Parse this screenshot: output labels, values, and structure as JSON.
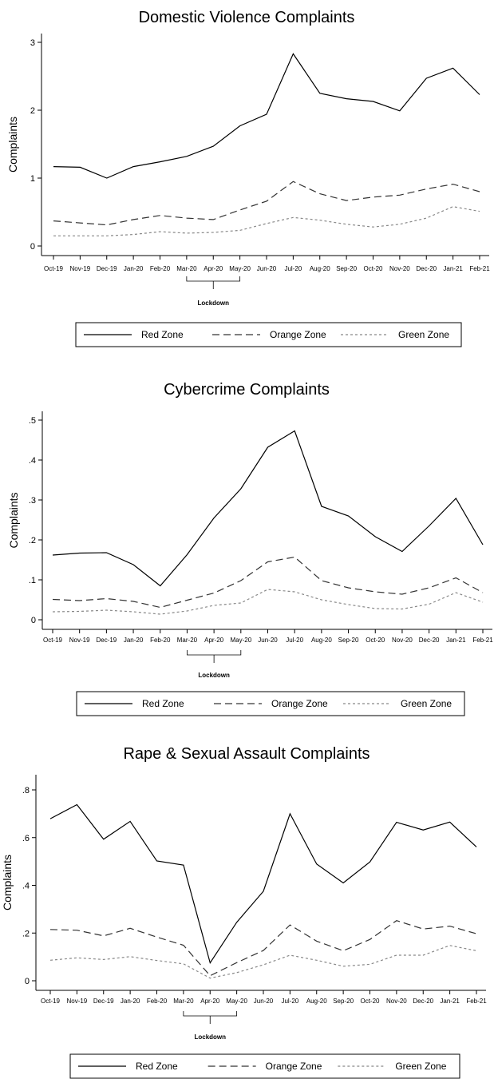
{
  "chart_data": [
    {
      "type": "line",
      "title": "Domestic Violence Complaints",
      "ylabel": "Complaints",
      "xlabel": "",
      "categories": [
        "Oct-19",
        "Nov-19",
        "Dec-19",
        "Jan-20",
        "Feb-20",
        "Mar-20",
        "Apr-20",
        "May-20",
        "Jun-20",
        "Jul-20",
        "Aug-20",
        "Sep-20",
        "Oct-20",
        "Nov-20",
        "Dec-20",
        "Jan-21",
        "Feb-21"
      ],
      "ylim": [
        0,
        3
      ],
      "yticks": [
        "0",
        "1",
        "2",
        "3"
      ],
      "ytick_values": [
        0,
        1,
        2,
        3
      ],
      "annotation": {
        "label": "Lockdown",
        "from": "Mar-20",
        "to": "May-20"
      },
      "legend": "bottom",
      "series": [
        {
          "name": "Red Zone",
          "style": "solid",
          "color": "#000000",
          "values": [
            1.17,
            1.16,
            1.0,
            1.17,
            1.24,
            1.32,
            1.47,
            1.77,
            1.94,
            2.83,
            2.25,
            2.17,
            2.13,
            1.99,
            2.47,
            2.62,
            2.23
          ]
        },
        {
          "name": "Orange Zone",
          "style": "dashed",
          "color": "#333333",
          "values": [
            0.37,
            0.34,
            0.31,
            0.39,
            0.45,
            0.41,
            0.39,
            0.53,
            0.66,
            0.95,
            0.77,
            0.67,
            0.72,
            0.75,
            0.84,
            0.91,
            0.8
          ]
        },
        {
          "name": "Green Zone",
          "style": "dotted",
          "color": "#888888",
          "values": [
            0.15,
            0.15,
            0.15,
            0.17,
            0.21,
            0.19,
            0.2,
            0.23,
            0.33,
            0.42,
            0.38,
            0.32,
            0.28,
            0.32,
            0.41,
            0.58,
            0.51
          ]
        }
      ]
    },
    {
      "type": "line",
      "title": "Cybercrime Complaints",
      "ylabel": "Complaints",
      "xlabel": "",
      "categories": [
        "Oct-19",
        "Nov-19",
        "Dec-19",
        "Jan-20",
        "Feb-20",
        "Mar-20",
        "Apr-20",
        "May-20",
        "Jun-20",
        "Jul-20",
        "Aug-20",
        "Sep-20",
        "Oct-20",
        "Nov-20",
        "Dec-20",
        "Jan-21",
        "Feb-21"
      ],
      "ylim": [
        0,
        0.5
      ],
      "yticks": [
        "0",
        ".1",
        ".2",
        ".3",
        ".4",
        ".5"
      ],
      "ytick_values": [
        0,
        0.1,
        0.2,
        0.3,
        0.4,
        0.5
      ],
      "annotation": {
        "label": "Lockdown",
        "from": "Mar-20",
        "to": "May-20"
      },
      "legend": "bottom",
      "series": [
        {
          "name": "Red Zone",
          "style": "solid",
          "color": "#000000",
          "values": [
            0.162,
            0.167,
            0.168,
            0.138,
            0.085,
            0.163,
            0.255,
            0.328,
            0.432,
            0.473,
            0.284,
            0.26,
            0.208,
            0.171,
            0.235,
            0.304,
            0.188
          ]
        },
        {
          "name": "Orange Zone",
          "style": "dashed",
          "color": "#333333",
          "values": [
            0.051,
            0.048,
            0.053,
            0.046,
            0.031,
            0.049,
            0.067,
            0.098,
            0.145,
            0.157,
            0.098,
            0.08,
            0.07,
            0.064,
            0.08,
            0.105,
            0.068
          ]
        },
        {
          "name": "Green Zone",
          "style": "dotted",
          "color": "#888888",
          "values": [
            0.02,
            0.021,
            0.024,
            0.02,
            0.014,
            0.022,
            0.036,
            0.042,
            0.076,
            0.07,
            0.05,
            0.038,
            0.028,
            0.027,
            0.039,
            0.068,
            0.044
          ]
        }
      ]
    },
    {
      "type": "line",
      "title": "Rape & Sexual Assault Complaints",
      "ylabel": "Complaints",
      "xlabel": "",
      "categories": [
        "Oct-19",
        "Nov-19",
        "Dec-19",
        "Jan-20",
        "Feb-20",
        "Mar-20",
        "Apr-20",
        "May-20",
        "Jun-20",
        "Jul-20",
        "Aug-20",
        "Sep-20",
        "Oct-20",
        "Nov-20",
        "Dec-20",
        "Jan-21",
        "Feb-21"
      ],
      "ylim": [
        0,
        0.8
      ],
      "yticks": [
        "0",
        ".2",
        ".4",
        ".6",
        ".8"
      ],
      "ytick_values": [
        0,
        0.2,
        0.4,
        0.6,
        0.8
      ],
      "annotation": {
        "label": "Lockdown",
        "from": "Mar-20",
        "to": "May-20"
      },
      "legend": "bottom",
      "series": [
        {
          "name": "Red Zone",
          "style": "solid",
          "color": "#000000",
          "values": [
            0.679,
            0.738,
            0.593,
            0.668,
            0.502,
            0.485,
            0.075,
            0.245,
            0.375,
            0.7,
            0.489,
            0.41,
            0.498,
            0.664,
            0.632,
            0.665,
            0.561
          ]
        },
        {
          "name": "Orange Zone",
          "style": "dashed",
          "color": "#333333",
          "values": [
            0.215,
            0.212,
            0.188,
            0.22,
            0.183,
            0.149,
            0.021,
            0.076,
            0.127,
            0.234,
            0.166,
            0.126,
            0.173,
            0.252,
            0.217,
            0.229,
            0.197
          ]
        },
        {
          "name": "Green Zone",
          "style": "dotted",
          "color": "#888888",
          "values": [
            0.086,
            0.096,
            0.089,
            0.101,
            0.085,
            0.071,
            0.011,
            0.034,
            0.067,
            0.107,
            0.086,
            0.061,
            0.069,
            0.107,
            0.107,
            0.148,
            0.126
          ]
        }
      ]
    }
  ]
}
